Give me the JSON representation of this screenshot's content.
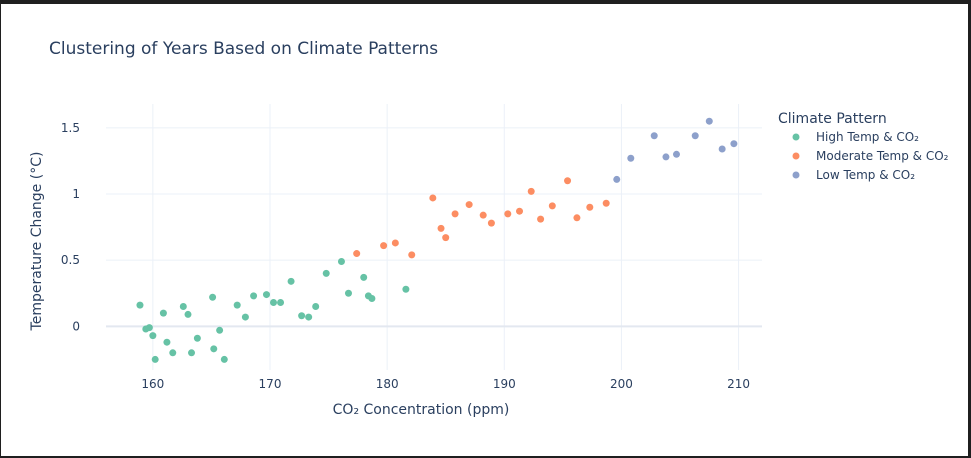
{
  "chart_data": {
    "type": "scatter",
    "title": "Clustering of Years Based on Climate Patterns",
    "xlabel": "CO₂ Concentration (ppm)",
    "ylabel": "Temperature Change (°C)",
    "xlim": [
      156,
      212
    ],
    "ylim": [
      -0.33,
      1.68
    ],
    "x_ticks": [
      160,
      170,
      180,
      190,
      200,
      210
    ],
    "x_tick_labels": [
      "160",
      "170",
      "180",
      "190",
      "200",
      "210"
    ],
    "y_ticks": [
      0,
      0.5,
      1,
      1.5
    ],
    "y_tick_labels": [
      "0",
      "0.5",
      "1",
      "1.5"
    ],
    "grid": true,
    "legend_title": "Climate Pattern",
    "legend_position": "right",
    "series": [
      {
        "name": "High Temp & CO₂",
        "color": "#66c2a5",
        "x": [
          158.9,
          159.4,
          159.7,
          160.0,
          160.2,
          160.9,
          161.2,
          161.7,
          162.6,
          163.0,
          163.3,
          163.8,
          165.1,
          165.2,
          165.7,
          166.1,
          167.2,
          167.9,
          168.6,
          169.7,
          170.3,
          170.9,
          171.8,
          172.7,
          173.3,
          173.9,
          174.8,
          176.1,
          176.7,
          178.0,
          178.4,
          178.7,
          181.6
        ],
        "y": [
          0.16,
          -0.02,
          -0.01,
          -0.07,
          -0.25,
          0.1,
          -0.12,
          -0.2,
          0.15,
          0.09,
          -0.2,
          -0.09,
          0.22,
          -0.17,
          -0.03,
          -0.25,
          0.16,
          0.07,
          0.23,
          0.24,
          0.18,
          0.18,
          0.34,
          0.08,
          0.07,
          0.15,
          0.4,
          0.49,
          0.25,
          0.37,
          0.23,
          0.21,
          0.28
        ]
      },
      {
        "name": "Moderate Temp & CO₂",
        "color": "#fc8d62",
        "x": [
          177.4,
          179.7,
          180.7,
          182.1,
          183.9,
          184.6,
          185.0,
          185.8,
          187.0,
          188.2,
          188.9,
          190.3,
          191.3,
          192.3,
          193.1,
          194.1,
          195.4,
          196.2,
          197.3,
          198.7
        ],
        "y": [
          0.55,
          0.61,
          0.63,
          0.54,
          0.97,
          0.74,
          0.67,
          0.85,
          0.92,
          0.84,
          0.78,
          0.85,
          0.87,
          1.02,
          0.81,
          0.91,
          1.1,
          0.82,
          0.9,
          0.93
        ]
      },
      {
        "name": "Low Temp & CO₂",
        "color": "#8da0cb",
        "x": [
          199.6,
          200.8,
          202.8,
          203.8,
          204.7,
          206.3,
          207.5,
          208.6,
          209.6
        ],
        "y": [
          1.11,
          1.27,
          1.44,
          1.28,
          1.3,
          1.44,
          1.55,
          1.34,
          1.38
        ]
      }
    ]
  }
}
